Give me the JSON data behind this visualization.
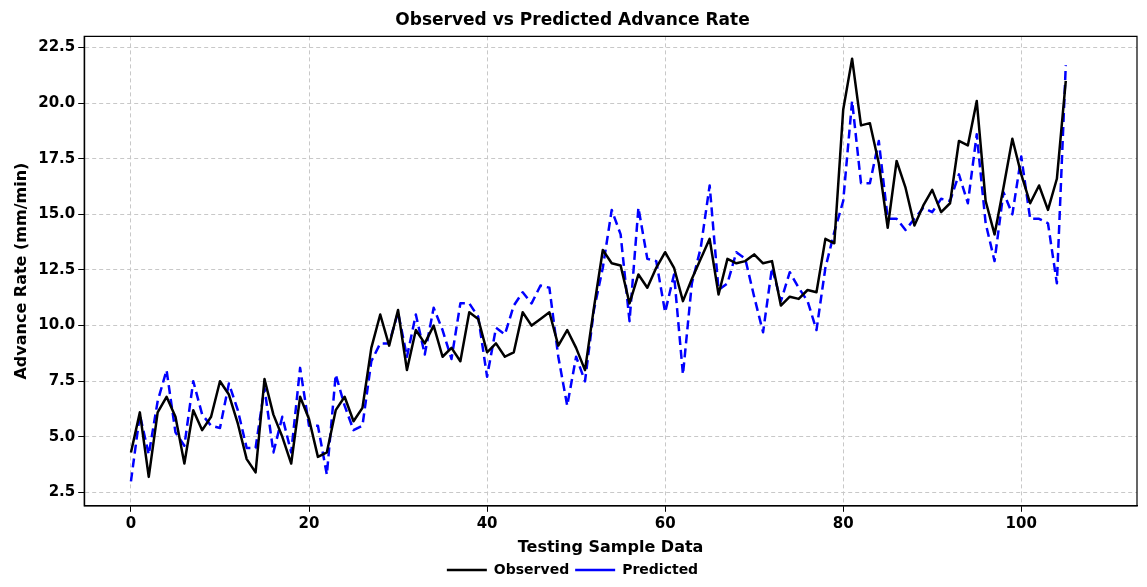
{
  "chart_data": {
    "type": "line",
    "title": "Observed vs Predicted Advance Rate",
    "xlabel": "Testing Sample Data",
    "ylabel": "Advance Rate (mm/min)",
    "x": [
      0,
      1,
      2,
      3,
      4,
      5,
      6,
      7,
      8,
      9,
      10,
      11,
      12,
      13,
      14,
      15,
      16,
      17,
      18,
      19,
      20,
      21,
      22,
      23,
      24,
      25,
      26,
      27,
      28,
      29,
      30,
      31,
      32,
      33,
      34,
      35,
      36,
      37,
      38,
      39,
      40,
      41,
      42,
      43,
      44,
      45,
      46,
      47,
      48,
      49,
      50,
      51,
      52,
      53,
      54,
      55,
      56,
      57,
      58,
      59,
      60,
      61,
      62,
      63,
      64,
      65,
      66,
      67,
      68,
      69,
      70,
      71,
      72,
      73,
      74,
      75,
      76,
      77,
      78,
      79,
      80,
      81,
      82,
      83,
      84,
      85,
      86,
      87,
      88,
      89,
      90,
      91,
      92,
      93,
      94,
      95,
      96,
      97,
      98,
      99,
      100,
      101,
      102,
      103,
      104,
      105
    ],
    "series": [
      {
        "name": "Observed",
        "color": "#000000",
        "line_style": "solid",
        "values": [
          4.3,
          6.1,
          3.2,
          6.1,
          6.8,
          5.9,
          3.8,
          6.2,
          5.3,
          5.9,
          7.5,
          6.9,
          5.6,
          4.0,
          3.4,
          7.6,
          6.0,
          5.0,
          3.8,
          6.8,
          5.8,
          4.1,
          4.3,
          6.2,
          6.8,
          5.7,
          6.3,
          9.0,
          10.5,
          9.1,
          10.7,
          8.0,
          9.8,
          9.2,
          10.0,
          8.6,
          9.0,
          8.4,
          10.6,
          10.3,
          8.8,
          9.2,
          8.6,
          8.8,
          10.6,
          10.0,
          10.3,
          10.6,
          9.1,
          9.8,
          9.0,
          8.0,
          10.8,
          13.4,
          12.8,
          12.7,
          11.0,
          12.3,
          11.7,
          12.6,
          13.3,
          12.6,
          11.1,
          12.1,
          13.0,
          13.9,
          11.4,
          13.0,
          12.8,
          12.9,
          13.2,
          12.8,
          12.9,
          10.9,
          11.3,
          11.2,
          11.6,
          11.5,
          13.9,
          13.7,
          19.7,
          22.0,
          19.0,
          19.1,
          17.3,
          14.4,
          17.4,
          16.2,
          14.5,
          15.4,
          16.1,
          15.1,
          15.5,
          18.3,
          18.1,
          20.1,
          15.6,
          14.1,
          16.2,
          18.4,
          16.8,
          15.5,
          16.3,
          15.2,
          16.6,
          21.0
        ]
      },
      {
        "name": "Predicted",
        "color": "#0000ff",
        "line_style": "dashed",
        "values": [
          3.0,
          6.0,
          4.2,
          6.6,
          8.0,
          5.2,
          4.6,
          7.5,
          6.0,
          5.5,
          5.4,
          7.4,
          6.2,
          4.5,
          4.5,
          7.2,
          4.3,
          5.9,
          4.3,
          8.1,
          5.5,
          5.5,
          3.3,
          7.8,
          6.4,
          5.3,
          5.5,
          8.4,
          9.2,
          9.2,
          10.6,
          8.6,
          10.5,
          8.7,
          10.8,
          9.8,
          8.5,
          11.0,
          11.0,
          10.4,
          7.7,
          9.9,
          9.6,
          10.9,
          11.5,
          11.0,
          11.8,
          11.7,
          8.6,
          6.4,
          8.6,
          7.5,
          10.7,
          12.6,
          15.2,
          14.1,
          10.2,
          15.3,
          13.0,
          12.9,
          10.6,
          12.3,
          7.8,
          11.9,
          13.5,
          16.3,
          11.6,
          11.9,
          13.3,
          13.0,
          11.3,
          9.7,
          12.6,
          11.1,
          12.4,
          11.7,
          11.1,
          9.8,
          12.6,
          14.2,
          15.6,
          20.1,
          16.4,
          16.4,
          18.3,
          14.8,
          14.8,
          14.3,
          14.8,
          15.3,
          15.1,
          15.7,
          15.6,
          16.8,
          15.5,
          18.6,
          14.6,
          12.9,
          16.0,
          15.0,
          17.6,
          14.8,
          14.8,
          14.6,
          11.9,
          21.7
        ]
      }
    ],
    "xlim": [
      -5.25,
      113
    ],
    "xticks": [
      0,
      20,
      40,
      60,
      80,
      100
    ],
    "ylim": [
      1.9,
      23.0
    ],
    "yticks": [
      {
        "value": 2.5,
        "label": "2.5"
      },
      {
        "value": 5,
        "label": "5.0"
      },
      {
        "value": 7.5,
        "label": "7.5"
      },
      {
        "value": 10,
        "label": "10.0"
      },
      {
        "value": 12.5,
        "label": "12.5"
      },
      {
        "value": 15,
        "label": "15.0"
      },
      {
        "value": 17.5,
        "label": "17.5"
      },
      {
        "value": 20,
        "label": "20.0"
      },
      {
        "value": 22.5,
        "label": "22.5"
      }
    ],
    "grid": true,
    "legend": "bottom",
    "marker": "none"
  }
}
